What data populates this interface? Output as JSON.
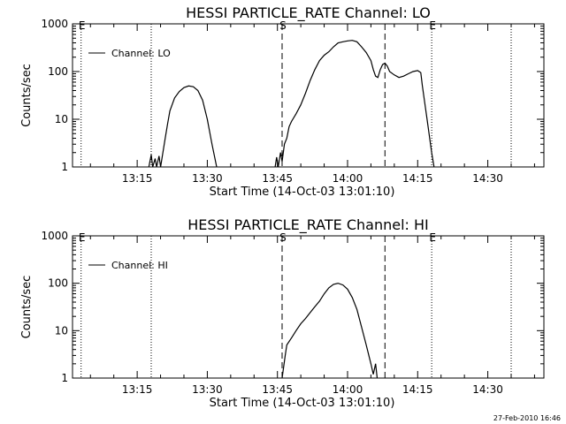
{
  "footer": {
    "timestamp": "27-Feb-2010 16:46"
  },
  "chart_data": [
    {
      "type": "line",
      "title": "HESSI PARTICLE_RATE Channel: LO",
      "xlabel": "Start Time (14-Oct-03 13:01:10)",
      "ylabel": "Counts/sec",
      "yscale": "log",
      "ylim": [
        1,
        1000
      ],
      "xlim": [
        "13:01:10",
        "14:42:00"
      ],
      "x_ticks": [
        "13:15",
        "13:30",
        "13:45",
        "14:00",
        "14:15",
        "14:30"
      ],
      "y_ticks": [
        "1",
        "10",
        "100",
        "1000"
      ],
      "legend": {
        "position": "top-left",
        "entries": [
          "Channel: LO"
        ]
      },
      "vertical_lines": [
        {
          "x": "13:03:00",
          "style": "dotted",
          "label": "E"
        },
        {
          "x": "13:18:00",
          "style": "dotted",
          "label": ""
        },
        {
          "x": "13:46:00",
          "style": "dashed",
          "label": "S"
        },
        {
          "x": "14:08:00",
          "style": "dashed",
          "label": ""
        },
        {
          "x": "14:18:00",
          "style": "dotted",
          "label": "E"
        },
        {
          "x": "14:35:00",
          "style": "dotted",
          "label": ""
        }
      ],
      "series": [
        {
          "name": "Channel: LO",
          "segments": [
            [
              [
                "13:17:30",
                1
              ],
              [
                "13:18:00",
                1.8
              ],
              [
                "13:18:20",
                1
              ],
              [
                "13:18:50",
                1.5
              ],
              [
                "13:19:10",
                1
              ],
              [
                "13:19:40",
                1.7
              ],
              [
                "13:20:00",
                1
              ],
              [
                "13:20:30",
                2
              ],
              [
                "13:21:00",
                4
              ],
              [
                "13:21:30",
                8
              ],
              [
                "13:22:00",
                15
              ],
              [
                "13:23:00",
                28
              ],
              [
                "13:24:00",
                38
              ],
              [
                "13:25:00",
                46
              ],
              [
                "13:26:00",
                50
              ],
              [
                "13:27:00",
                48
              ],
              [
                "13:28:00",
                40
              ],
              [
                "13:29:00",
                25
              ],
              [
                "13:30:00",
                10
              ],
              [
                "13:31:00",
                3
              ],
              [
                "13:32:00",
                1
              ]
            ],
            [
              [
                "13:44:30",
                1
              ],
              [
                "13:44:50",
                1.6
              ],
              [
                "13:45:10",
                1
              ],
              [
                "13:45:40",
                2
              ],
              [
                "13:46:00",
                1.3
              ],
              [
                "13:46:30",
                3
              ],
              [
                "13:47:00",
                4
              ],
              [
                "13:47:30",
                7
              ],
              [
                "13:48:00",
                9
              ],
              [
                "13:49:00",
                13
              ],
              [
                "13:50:00",
                20
              ],
              [
                "13:51:00",
                35
              ],
              [
                "13:52:00",
                65
              ],
              [
                "13:53:00",
                110
              ],
              [
                "13:54:00",
                170
              ],
              [
                "13:55:00",
                220
              ],
              [
                "13:56:00",
                260
              ],
              [
                "13:57:00",
                330
              ],
              [
                "13:58:00",
                400
              ],
              [
                "13:59:00",
                420
              ],
              [
                "14:00:00",
                440
              ],
              [
                "14:01:00",
                450
              ],
              [
                "14:02:00",
                420
              ],
              [
                "14:03:00",
                330
              ],
              [
                "14:04:00",
                250
              ],
              [
                "14:05:00",
                170
              ],
              [
                "14:05:30",
                110
              ],
              [
                "14:06:00",
                80
              ],
              [
                "14:06:30",
                75
              ],
              [
                "14:07:00",
                110
              ],
              [
                "14:07:30",
                140
              ],
              [
                "14:08:00",
                150
              ],
              [
                "14:08:30",
                130
              ],
              [
                "14:09:00",
                100
              ],
              [
                "14:10:00",
                85
              ],
              [
                "14:11:00",
                75
              ],
              [
                "14:12:00",
                80
              ],
              [
                "14:13:00",
                90
              ],
              [
                "14:14:00",
                100
              ],
              [
                "14:15:00",
                105
              ],
              [
                "14:15:40",
                95
              ],
              [
                "14:16:00",
                50
              ],
              [
                "14:17:00",
                10
              ],
              [
                "14:18:00",
                2
              ],
              [
                "14:18:30",
                1
              ]
            ]
          ]
        }
      ]
    },
    {
      "type": "line",
      "title": "HESSI PARTICLE_RATE Channel: HI",
      "xlabel": "Start Time (14-Oct-03 13:01:10)",
      "ylabel": "Counts/sec",
      "yscale": "log",
      "ylim": [
        1,
        1000
      ],
      "xlim": [
        "13:01:10",
        "14:42:00"
      ],
      "x_ticks": [
        "13:15",
        "13:30",
        "13:45",
        "14:00",
        "14:15",
        "14:30"
      ],
      "y_ticks": [
        "1",
        "10",
        "100",
        "1000"
      ],
      "legend": {
        "position": "top-left",
        "entries": [
          "Channel: HI"
        ]
      },
      "vertical_lines": [
        {
          "x": "13:03:00",
          "style": "dotted",
          "label": "E"
        },
        {
          "x": "13:18:00",
          "style": "dotted",
          "label": ""
        },
        {
          "x": "13:46:00",
          "style": "dashed",
          "label": "S"
        },
        {
          "x": "14:08:00",
          "style": "dashed",
          "label": ""
        },
        {
          "x": "14:18:00",
          "style": "dotted",
          "label": "E"
        },
        {
          "x": "14:35:00",
          "style": "dotted",
          "label": ""
        }
      ],
      "series": [
        {
          "name": "Channel: HI",
          "segments": [
            [
              [
                "13:46:00",
                1
              ],
              [
                "13:46:40",
                3
              ],
              [
                "13:47:00",
                5
              ],
              [
                "13:48:00",
                7
              ],
              [
                "13:49:00",
                10
              ],
              [
                "13:50:00",
                14
              ],
              [
                "13:51:00",
                18
              ],
              [
                "13:52:00",
                24
              ],
              [
                "13:53:00",
                32
              ],
              [
                "13:54:00",
                42
              ],
              [
                "13:55:00",
                60
              ],
              [
                "13:56:00",
                80
              ],
              [
                "13:57:00",
                95
              ],
              [
                "13:58:00",
                100
              ],
              [
                "13:59:00",
                92
              ],
              [
                "14:00:00",
                75
              ],
              [
                "14:01:00",
                50
              ],
              [
                "14:02:00",
                28
              ],
              [
                "14:03:00",
                12
              ],
              [
                "14:04:00",
                5
              ],
              [
                "14:05:00",
                2
              ],
              [
                "14:05:30",
                1.2
              ],
              [
                "14:06:00",
                2
              ],
              [
                "14:06:20",
                1
              ]
            ]
          ]
        }
      ]
    }
  ]
}
